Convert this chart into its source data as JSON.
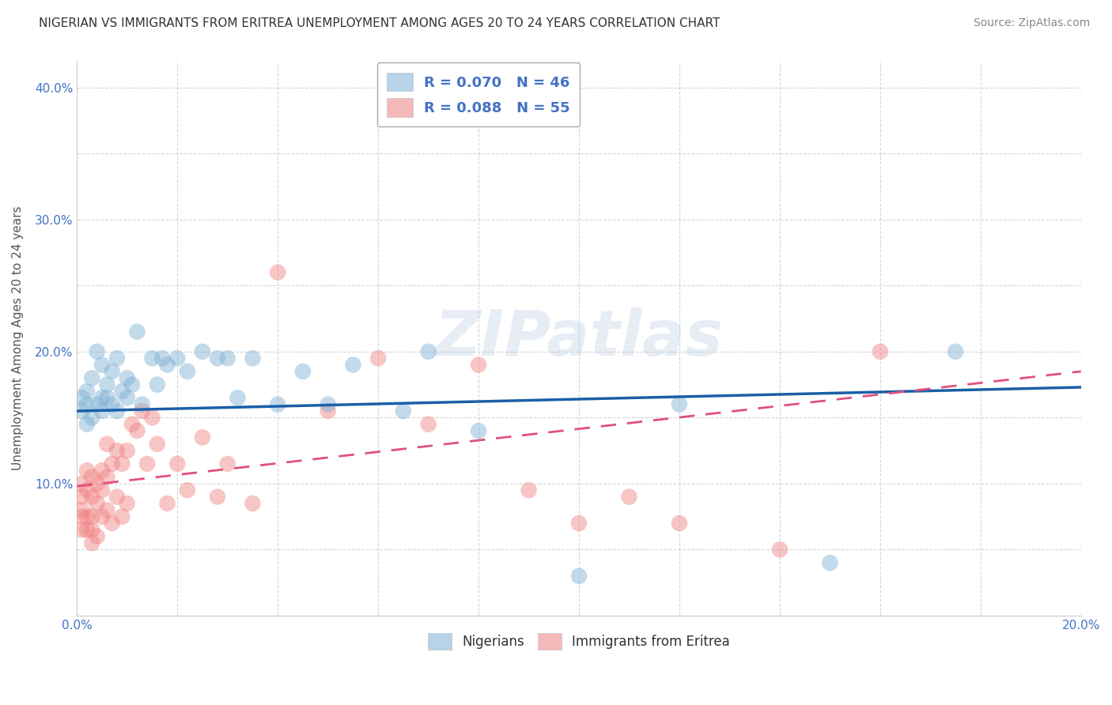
{
  "title": "NIGERIAN VS IMMIGRANTS FROM ERITREA UNEMPLOYMENT AMONG AGES 20 TO 24 YEARS CORRELATION CHART",
  "source": "Source: ZipAtlas.com",
  "ylabel": "Unemployment Among Ages 20 to 24 years",
  "xlim": [
    0.0,
    0.2
  ],
  "ylim": [
    0.0,
    0.42
  ],
  "xticks": [
    0.0,
    0.02,
    0.04,
    0.06,
    0.08,
    0.1,
    0.12,
    0.14,
    0.16,
    0.18,
    0.2
  ],
  "yticks": [
    0.0,
    0.05,
    0.1,
    0.15,
    0.2,
    0.25,
    0.3,
    0.35,
    0.4
  ],
  "watermark": "ZIPatlas",
  "nigerian_color": "#7bafd4",
  "eritrea_color": "#f08080",
  "nigerian_line_color": "#1a5fa8",
  "eritrea_line_color": "#e05080",
  "title_fontsize": 11,
  "axis_label_fontsize": 11,
  "tick_fontsize": 11,
  "legend_fontsize": 12,
  "source_fontsize": 10,
  "background_color": "#ffffff",
  "grid_color": "#cccccc",
  "nigerian_x": [
    0.001,
    0.001,
    0.002,
    0.002,
    0.002,
    0.003,
    0.003,
    0.004,
    0.004,
    0.005,
    0.005,
    0.005,
    0.006,
    0.006,
    0.007,
    0.007,
    0.008,
    0.008,
    0.009,
    0.01,
    0.01,
    0.011,
    0.012,
    0.013,
    0.015,
    0.016,
    0.017,
    0.018,
    0.02,
    0.022,
    0.025,
    0.028,
    0.03,
    0.032,
    0.035,
    0.04,
    0.045,
    0.05,
    0.055,
    0.065,
    0.07,
    0.08,
    0.1,
    0.12,
    0.15,
    0.175
  ],
  "nigerian_y": [
    0.155,
    0.165,
    0.145,
    0.16,
    0.17,
    0.15,
    0.18,
    0.16,
    0.2,
    0.155,
    0.165,
    0.19,
    0.175,
    0.165,
    0.185,
    0.16,
    0.195,
    0.155,
    0.17,
    0.18,
    0.165,
    0.175,
    0.215,
    0.16,
    0.195,
    0.175,
    0.195,
    0.19,
    0.195,
    0.185,
    0.2,
    0.195,
    0.195,
    0.165,
    0.195,
    0.16,
    0.185,
    0.16,
    0.19,
    0.155,
    0.2,
    0.14,
    0.03,
    0.16,
    0.04,
    0.2
  ],
  "eritrea_x": [
    0.001,
    0.001,
    0.001,
    0.001,
    0.001,
    0.002,
    0.002,
    0.002,
    0.002,
    0.003,
    0.003,
    0.003,
    0.003,
    0.003,
    0.004,
    0.004,
    0.004,
    0.005,
    0.005,
    0.005,
    0.006,
    0.006,
    0.006,
    0.007,
    0.007,
    0.008,
    0.008,
    0.009,
    0.009,
    0.01,
    0.01,
    0.011,
    0.012,
    0.013,
    0.014,
    0.015,
    0.016,
    0.018,
    0.02,
    0.022,
    0.025,
    0.028,
    0.03,
    0.035,
    0.04,
    0.05,
    0.06,
    0.07,
    0.08,
    0.09,
    0.1,
    0.11,
    0.12,
    0.14,
    0.16
  ],
  "eritrea_y": [
    0.1,
    0.09,
    0.08,
    0.075,
    0.065,
    0.11,
    0.095,
    0.075,
    0.065,
    0.105,
    0.09,
    0.075,
    0.065,
    0.055,
    0.1,
    0.085,
    0.06,
    0.11,
    0.095,
    0.075,
    0.13,
    0.105,
    0.08,
    0.115,
    0.07,
    0.125,
    0.09,
    0.115,
    0.075,
    0.125,
    0.085,
    0.145,
    0.14,
    0.155,
    0.115,
    0.15,
    0.13,
    0.085,
    0.115,
    0.095,
    0.135,
    0.09,
    0.115,
    0.085,
    0.26,
    0.155,
    0.195,
    0.145,
    0.19,
    0.095,
    0.07,
    0.09,
    0.07,
    0.05,
    0.2
  ]
}
